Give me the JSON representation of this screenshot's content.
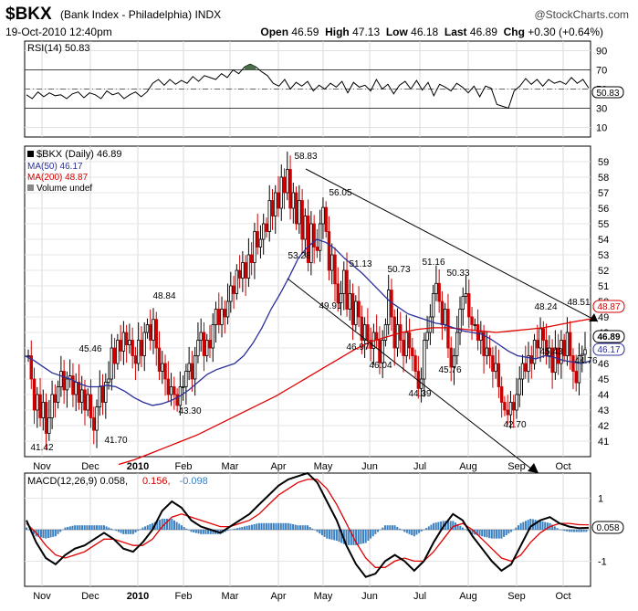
{
  "header": {
    "symbol": "$BKX",
    "name": "(Bank Index - Philadelphia)",
    "exchange": "INDX",
    "brand": "@StockCharts.com",
    "datetime": "19-Oct-2010 12:40pm",
    "open_label": "Open",
    "open": "46.59",
    "high_label": "High",
    "high": "47.13",
    "low_label": "Low",
    "low": "46.18",
    "last_label": "Last",
    "last": "46.89",
    "chg_label": "Chg",
    "chg": "+0.30 (+0.64%)"
  },
  "chart_data": [
    {
      "type": "line",
      "panel": "rsi",
      "legend": "RSI(14) 50.83",
      "ylim": [
        0,
        100
      ],
      "yticks": [
        10,
        30,
        50,
        70,
        90
      ],
      "levels": [
        70,
        50,
        30
      ],
      "last_value": "50.83",
      "values": [
        44,
        40,
        47,
        42,
        46,
        43,
        44,
        40,
        45,
        47,
        41,
        46,
        44,
        40,
        48,
        44,
        46,
        40,
        44,
        47,
        42,
        47,
        56,
        60,
        54,
        60,
        55,
        59,
        56,
        63,
        58,
        64,
        62,
        60,
        66,
        62,
        70,
        66,
        73,
        76,
        73,
        68,
        64,
        56,
        53,
        60,
        50,
        57,
        53,
        58,
        48,
        54,
        50,
        56,
        52,
        58,
        46,
        57,
        52,
        54,
        48,
        60,
        50,
        55,
        45,
        54,
        58,
        50,
        59,
        49,
        57,
        43,
        55,
        52,
        48,
        56,
        52,
        46,
        53,
        42,
        53,
        51,
        34,
        32,
        30,
        48,
        53,
        61,
        55,
        60,
        53,
        60,
        56,
        58,
        55,
        62,
        56,
        60,
        51
      ]
    },
    {
      "type": "candlestick",
      "panel": "price",
      "legend": [
        "$BKX (Daily) 46.89",
        "MA(50) 46.17",
        "MA(200) 48.87",
        "Volume undef"
      ],
      "ylim": [
        40,
        60
      ],
      "yticks": [
        41,
        42,
        43,
        44,
        45,
        46,
        47,
        48,
        49,
        50,
        51,
        52,
        53,
        54,
        55,
        56,
        57,
        58,
        59
      ],
      "x_labels": [
        "Nov",
        "Dec",
        "2010",
        "Feb",
        "Mar",
        "Apr",
        "May",
        "Jun",
        "Jul",
        "Aug",
        "Sep",
        "Oct"
      ],
      "close": [
        46.5,
        45.0,
        43.0,
        44.0,
        42.5,
        43.5,
        41.5,
        42.5,
        44.0,
        43.5,
        44.5,
        45.5,
        44.3,
        45.0,
        45.2,
        44.0,
        44.8,
        43.5,
        44.3,
        43.0,
        44.0,
        42.5,
        41.7,
        43.2,
        44.5,
        43.5,
        44.8,
        45.0,
        47.0,
        46.0,
        47.5,
        46.8,
        48.0,
        47.2,
        47.5,
        46.5,
        46.0,
        47.5,
        46.5,
        48.0,
        48.5,
        47.5,
        48.84,
        47.0,
        45.5,
        46.0,
        45.0,
        44.0,
        44.5,
        44.0,
        43.3,
        44.5,
        44.5,
        45.5,
        46.0,
        45.0,
        46.5,
        47.5,
        48.0,
        46.5,
        47.5,
        47.0,
        48.5,
        49.5,
        48.5,
        49.5,
        49.0,
        50.0,
        51.0,
        50.5,
        52.0,
        51.5,
        52.5,
        51.5,
        53.0,
        52.5,
        54.5,
        53.5,
        54.0,
        55.0,
        54.5,
        56.5,
        55.5,
        57.0,
        56.0,
        58.0,
        57.0,
        58.5,
        56.0,
        57.0,
        55.0,
        56.5,
        54.0,
        55.5,
        52.5,
        55.0,
        53.5,
        53.28,
        55.0,
        56.05,
        54.5,
        52.0,
        53.0,
        51.13,
        49.91,
        50.5,
        52.0,
        49.5,
        50.5,
        48.5,
        50.0,
        49.0,
        47.5,
        48.5,
        47.5,
        46.97,
        48.0,
        47.5,
        46.04,
        47.5,
        48.5,
        50.73,
        49.0,
        47.0,
        48.5,
        47.5,
        46.5,
        48.0,
        47.0,
        46.5,
        45.5,
        44.39,
        45.0,
        47.5,
        48.0,
        49.0,
        50.5,
        51.16,
        50.0,
        48.5,
        49.5,
        47.0,
        45.76,
        46.5,
        48.0,
        49.5,
        50.33,
        50.5,
        49.0,
        48.5,
        48.5,
        47.5,
        48.0,
        46.5,
        47.0,
        46.5,
        45.5,
        46.0,
        44.5,
        43.5,
        43.0,
        42.7,
        43.5,
        43.0,
        44.0,
        45.0,
        46.0,
        45.5,
        46.5,
        46.0,
        47.5,
        47.0,
        48.24,
        47.5,
        46.5,
        47.0,
        45.43,
        47.0,
        46.0,
        47.5,
        46.5,
        48.0,
        46.5,
        45.5,
        44.76,
        46.5,
        46.59,
        46.89
      ],
      "ma50": {
        "label": "MA(50)",
        "value": "46.17",
        "values": [
          46.5,
          46.2,
          45.8,
          45.4,
          45.2,
          45.0,
          44.7,
          44.5,
          44.5,
          44.6,
          44.5,
          44.2,
          43.8,
          43.5,
          43.3,
          43.4,
          43.6,
          43.9,
          44.3,
          44.8,
          45.3,
          45.6,
          45.8,
          46.0,
          46.5,
          47.3,
          48.3,
          49.5,
          50.5,
          51.6,
          52.8,
          53.5,
          54.0,
          53.8,
          53.4,
          52.8,
          52.3,
          51.8,
          51.2,
          50.6,
          50.0,
          49.6,
          49.2,
          49.0,
          48.8,
          48.6,
          48.5,
          48.3,
          48.1,
          48.0,
          47.9,
          47.6,
          47.2,
          46.8,
          46.5,
          46.4,
          46.3,
          46.5,
          46.4,
          46.2,
          46.1,
          46.0,
          46.17
        ]
      },
      "ma200": {
        "label": "MA(200)",
        "value": "48.87",
        "values": [
          39.5,
          39.8,
          40.2,
          40.6,
          41.0,
          41.4,
          41.9,
          42.4,
          42.9,
          43.4,
          43.9,
          44.5,
          45.1,
          45.7,
          46.3,
          46.9,
          47.4,
          47.7,
          48.0,
          48.2,
          48.3,
          48.3,
          48.2,
          48.1,
          48.0,
          48.1,
          48.2,
          48.3,
          48.5,
          48.7,
          48.87
        ]
      },
      "annotations": [
        {
          "label": "41.42",
          "value": 41.42
        },
        {
          "label": "45.46",
          "value": 45.46
        },
        {
          "label": "41.70",
          "value": 41.7
        },
        {
          "label": "48.84",
          "value": 48.84
        },
        {
          "label": "43.30",
          "value": 43.3
        },
        {
          "label": "58.83",
          "value": 58.83
        },
        {
          "label": "53.28",
          "value": 53.28
        },
        {
          "label": "56.05",
          "value": 56.05
        },
        {
          "label": "49.91",
          "value": 49.91
        },
        {
          "label": "51.13",
          "value": 51.13
        },
        {
          "label": "46.97",
          "value": 46.97
        },
        {
          "label": "46.04",
          "value": 46.04
        },
        {
          "label": "50.73",
          "value": 50.73
        },
        {
          "label": "44.39",
          "value": 44.39
        },
        {
          "label": "51.16",
          "value": 51.16
        },
        {
          "label": "45.76",
          "value": 45.76
        },
        {
          "label": "50.33",
          "value": 50.33
        },
        {
          "label": "42.70",
          "value": 42.7
        },
        {
          "label": "48.24",
          "value": 48.24
        },
        {
          "label": "45.43",
          "value": 45.43
        },
        {
          "label": "48.51",
          "value": 48.51
        },
        {
          "label": "44.76",
          "value": 44.76
        }
      ],
      "right_tags": [
        {
          "label": "48.87",
          "color": "#d40000"
        },
        {
          "label": "46.89",
          "color": "#000000"
        },
        {
          "label": "46.17",
          "color": "#2b2f9a"
        }
      ]
    },
    {
      "type": "line",
      "panel": "macd",
      "legend": [
        {
          "text": "MACD(12,26,9) 0.058,",
          "color": "#000000"
        },
        {
          "text": "0.156,",
          "color": "#d40000"
        },
        {
          "text": "-0.098",
          "color": "#3a7fc0"
        }
      ],
      "ylim": [
        -1.8,
        1.8
      ],
      "yticks": [
        -1,
        0,
        1
      ],
      "last_value": "0.058",
      "x_labels": [
        "Nov",
        "Dec",
        "2010",
        "Feb",
        "Mar",
        "Apr",
        "May",
        "Jun",
        "Jul",
        "Aug",
        "Sep",
        "Oct"
      ],
      "macd": [
        0.3,
        -0.4,
        -0.9,
        -1.1,
        -0.8,
        -0.6,
        -0.5,
        -0.3,
        -0.1,
        -0.3,
        -0.6,
        -0.7,
        -0.4,
        0.0,
        0.6,
        0.9,
        0.7,
        0.3,
        0.1,
        0.0,
        -0.1,
        0.1,
        0.3,
        0.5,
        0.8,
        1.1,
        1.4,
        1.6,
        1.7,
        1.8,
        1.5,
        0.9,
        0.3,
        -0.5,
        -1.1,
        -1.5,
        -1.4,
        -1.0,
        -0.8,
        -1.0,
        -1.3,
        -1.0,
        -0.4,
        0.1,
        0.5,
        0.3,
        -0.2,
        -0.6,
        -1.0,
        -1.3,
        -1.1,
        -0.5,
        0.1,
        0.3,
        0.4,
        0.2,
        0.1,
        0.05,
        0.06
      ],
      "signal": [
        0.2,
        -0.1,
        -0.5,
        -0.8,
        -0.9,
        -0.8,
        -0.7,
        -0.5,
        -0.3,
        -0.3,
        -0.4,
        -0.5,
        -0.5,
        -0.3,
        0.1,
        0.4,
        0.5,
        0.4,
        0.3,
        0.2,
        0.1,
        0.1,
        0.2,
        0.3,
        0.5,
        0.8,
        1.1,
        1.3,
        1.5,
        1.6,
        1.6,
        1.3,
        0.8,
        0.2,
        -0.4,
        -0.9,
        -1.2,
        -1.2,
        -1.0,
        -0.9,
        -1.0,
        -1.0,
        -0.7,
        -0.3,
        0.1,
        0.2,
        0.0,
        -0.3,
        -0.6,
        -0.9,
        -1.0,
        -0.8,
        -0.4,
        -0.1,
        0.1,
        0.2,
        0.2,
        0.16,
        0.156
      ],
      "hist_label": "-0.098"
    }
  ]
}
